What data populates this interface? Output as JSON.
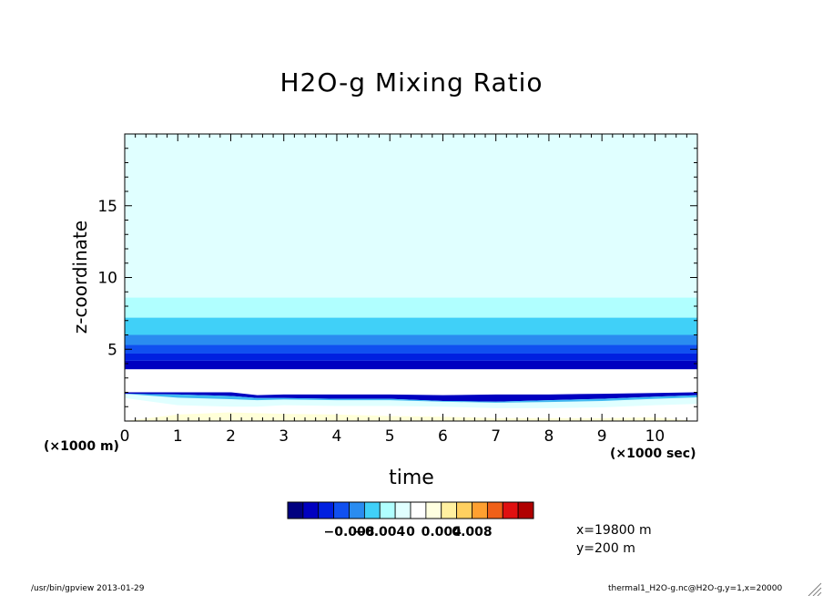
{
  "chart_data": {
    "type": "heatmap",
    "title": "H2O-g Mixing Ratio",
    "xlabel": "time",
    "ylabel": "z-coordinate",
    "x_unit_label": "(×1000 sec)",
    "y_unit_label": "(×1000 m)",
    "xlim": [
      0,
      10.8
    ],
    "ylim": [
      0,
      20
    ],
    "x_ticks": [
      0,
      1,
      2,
      3,
      4,
      5,
      6,
      7,
      8,
      9,
      10
    ],
    "y_ticks": [
      5,
      10,
      15
    ],
    "grid": false,
    "colorbar": {
      "colors": [
        "#000080",
        "#0000c0",
        "#0020e0",
        "#1050f0",
        "#2a8cf0",
        "#40d0f8",
        "#b0ffff",
        "#e0ffff",
        "#ffffff",
        "#ffffe0",
        "#fff0a0",
        "#ffd060",
        "#ffa030",
        "#f06018",
        "#e01010",
        "#b00000"
      ],
      "tick_labels": [
        "−0.008",
        "−0.004",
        "0",
        "0.004",
        "0.008"
      ],
      "tick_values": [
        -0.008,
        -0.004,
        0,
        0.004,
        0.008
      ],
      "range": [
        -0.016,
        0.016
      ]
    },
    "layers": [
      {
        "z_min": 8.6,
        "z_max": 20,
        "value": -0.001
      },
      {
        "z_min": 7.2,
        "z_max": 8.6,
        "value": -0.003
      },
      {
        "z_min": 6.0,
        "z_max": 7.2,
        "value": -0.005
      },
      {
        "z_min": 5.3,
        "z_max": 6.0,
        "value": -0.007
      },
      {
        "z_min": 4.7,
        "z_max": 5.3,
        "value": -0.009
      },
      {
        "z_min": 4.2,
        "z_max": 4.7,
        "value": -0.011
      },
      {
        "z_min": 3.6,
        "z_max": 4.2,
        "value": -0.013
      },
      {
        "z_min": 2.0,
        "z_max": 3.6,
        "value": 0.0005
      }
    ],
    "near_surface": {
      "time": [
        0,
        1,
        2,
        2.5,
        3,
        4,
        5,
        6,
        7,
        8,
        9,
        10,
        10.8
      ],
      "inversion_height": [
        2.0,
        2.0,
        2.0,
        1.8,
        1.85,
        1.85,
        1.85,
        1.8,
        1.85,
        1.85,
        1.9,
        1.95,
        2.0
      ],
      "mid_height": [
        1.9,
        1.85,
        1.75,
        1.6,
        1.6,
        1.55,
        1.55,
        1.4,
        1.35,
        1.45,
        1.55,
        1.7,
        1.8
      ],
      "low_height": [
        1.6,
        1.1,
        1.0,
        1.0,
        1.1,
        1.05,
        1.05,
        1.0,
        0.9,
        0.9,
        0.95,
        1.1,
        1.2
      ],
      "warm_height": [
        0,
        0.45,
        0.6,
        0.55,
        0.5,
        0.45,
        0.35,
        0.3,
        0.2,
        0.2,
        0.2,
        0.25,
        0
      ]
    }
  },
  "info": {
    "position_x": "x=19800 m",
    "position_y": "y=200 m",
    "footer_left": "/usr/bin/gpview  2013-01-29",
    "footer_right": "thermal1_H2O-g.nc@H2O-g,y=1,x=20000"
  }
}
